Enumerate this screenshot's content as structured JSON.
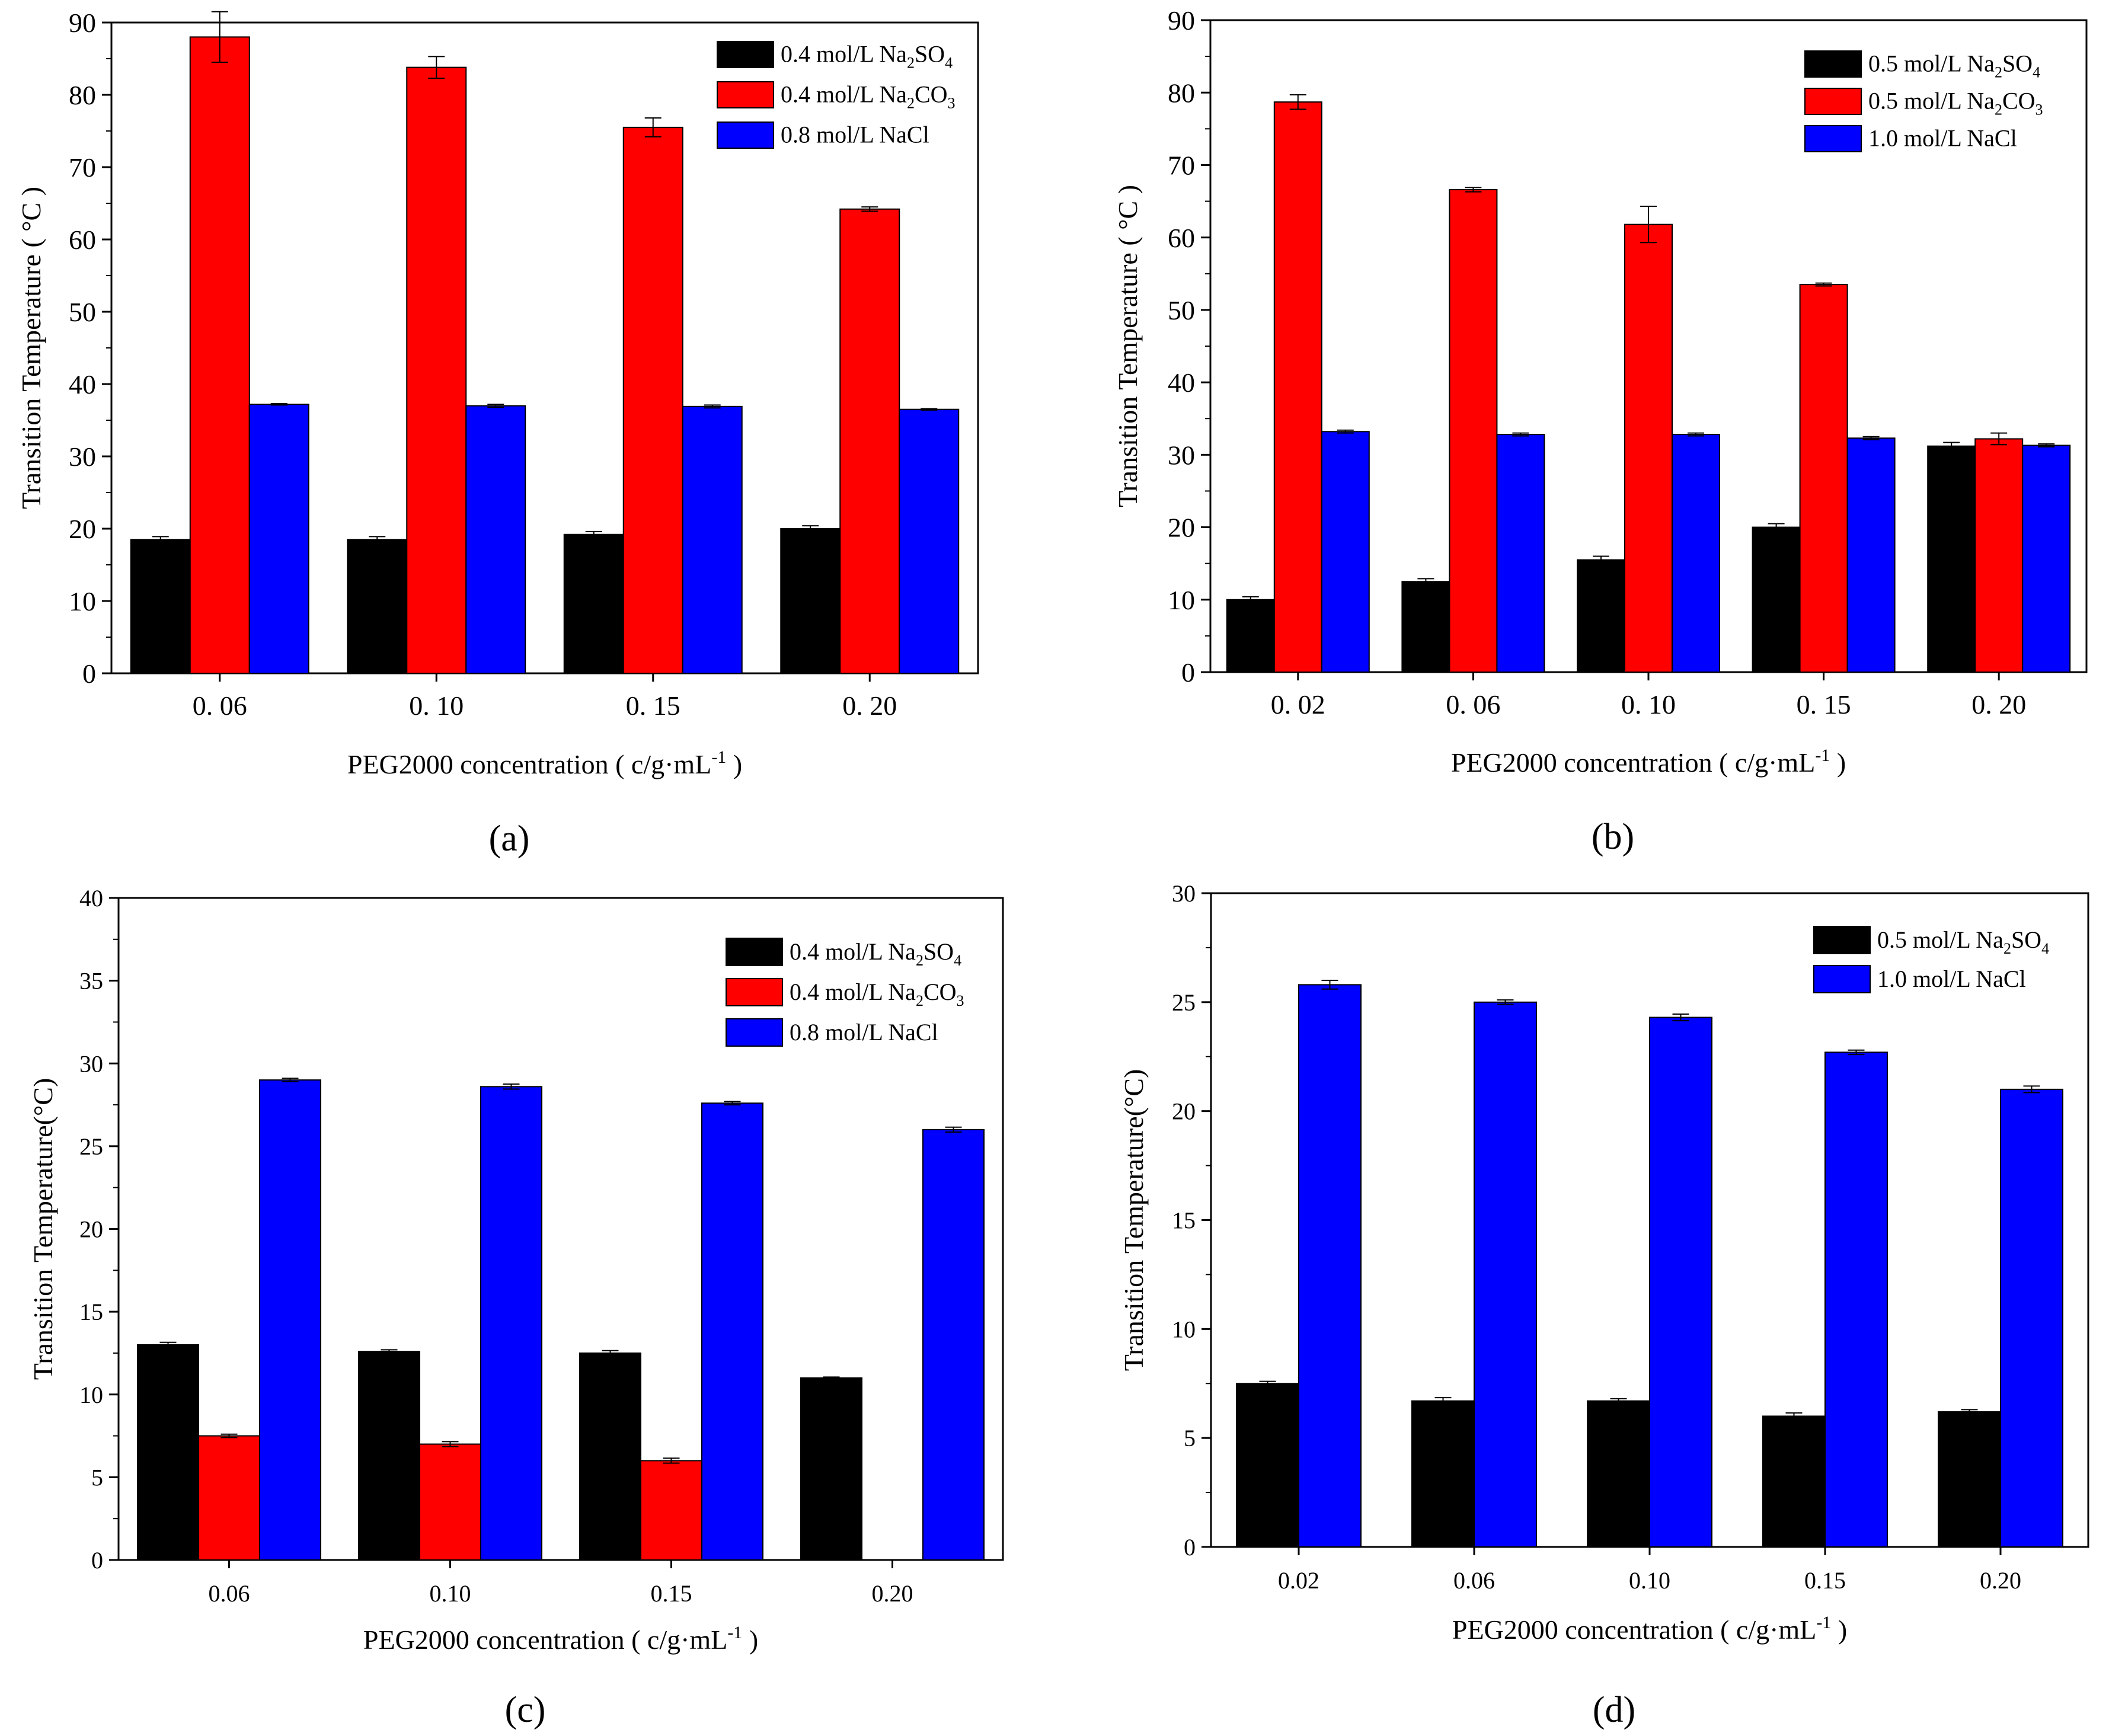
{
  "colors": {
    "na2so4": "#000000",
    "na2co3": "#ff0000",
    "nacl": "#0000ff",
    "axis": "#000000",
    "background": "#ffffff"
  },
  "chart_data": [
    {
      "type": "bar",
      "panel_label": "(a)",
      "ylabel": "Transition Temperature ( °C )",
      "xlabel": "PEG2000 concentration ( c/g·mL-1 )",
      "xlabel_parts": [
        "PEG2000 concentration ( c/g·mL",
        "-1",
        " )"
      ],
      "categories": [
        "0. 06",
        "0. 10",
        "0. 15",
        "0. 20"
      ],
      "ylim": [
        0,
        90
      ],
      "yticks": [
        0,
        10,
        20,
        30,
        40,
        50,
        60,
        70,
        80,
        90
      ],
      "series": [
        {
          "name": "0.4 mol/L Na2SO4",
          "legend_parts": [
            "0.4 mol/L Na",
            "2",
            "SO",
            "4"
          ],
          "color_key": "na2so4",
          "values": [
            18.5,
            18.5,
            19.2,
            20.0
          ],
          "errors": [
            0.4,
            0.4,
            0.4,
            0.4
          ]
        },
        {
          "name": "0.4 mol/L Na2CO3",
          "legend_parts": [
            "0.4 mol/L Na",
            "2",
            "CO",
            "3"
          ],
          "color_key": "na2co3",
          "values": [
            88.0,
            83.8,
            75.5,
            64.2
          ],
          "errors": [
            3.5,
            1.5,
            1.3,
            0.3
          ]
        },
        {
          "name": "0.8 mol/L NaCl",
          "legend_parts": [
            "0.8 mol/L NaCl"
          ],
          "color_key": "nacl",
          "values": [
            37.2,
            37.0,
            36.9,
            36.5
          ],
          "errors": [
            0.1,
            0.2,
            0.2,
            0.1
          ]
        }
      ]
    },
    {
      "type": "bar",
      "panel_label": "(b)",
      "ylabel": "Transition Temperature ( °C )",
      "xlabel": "PEG2000 concentration ( c/g·mL-1 )",
      "xlabel_parts": [
        "PEG2000 concentration ( c/g·mL",
        "-1",
        " )"
      ],
      "categories": [
        "0. 02",
        "0. 06",
        "0. 10",
        "0. 15",
        "0. 20"
      ],
      "ylim": [
        0,
        90
      ],
      "yticks": [
        0,
        10,
        20,
        30,
        40,
        50,
        60,
        70,
        80,
        90
      ],
      "series": [
        {
          "name": "0.5 mol/L Na2SO4",
          "legend_parts": [
            "0.5 mol/L Na",
            "2",
            "SO",
            "4"
          ],
          "color_key": "na2so4",
          "values": [
            10.0,
            12.5,
            15.5,
            20.0,
            31.2
          ],
          "errors": [
            0.4,
            0.4,
            0.5,
            0.5,
            0.5
          ]
        },
        {
          "name": "0.5 mol/L Na2CO3",
          "legend_parts": [
            "0.5 mol/L Na",
            "2",
            "CO",
            "3"
          ],
          "color_key": "na2co3",
          "values": [
            78.7,
            66.6,
            61.8,
            53.5,
            32.2
          ],
          "errors": [
            1.0,
            0.3,
            2.5,
            0.2,
            0.8
          ]
        },
        {
          "name": "1.0 mol/L NaCl",
          "legend_parts": [
            "1.0 mol/L NaCl"
          ],
          "color_key": "nacl",
          "values": [
            33.2,
            32.8,
            32.8,
            32.3,
            31.3
          ],
          "errors": [
            0.2,
            0.2,
            0.2,
            0.2,
            0.2
          ]
        }
      ]
    },
    {
      "type": "bar",
      "panel_label": "(c)",
      "ylabel": "Transition Temperature(°C)",
      "xlabel": "PEG2000 concentration ( c/g·mL-1 )",
      "xlabel_parts": [
        "PEG2000 concentration ( c/g·mL",
        "-1",
        " )"
      ],
      "categories": [
        "0.06",
        "0.10",
        "0.15",
        "0.20"
      ],
      "ylim": [
        0,
        40
      ],
      "yticks": [
        0,
        5,
        10,
        15,
        20,
        25,
        30,
        35,
        40
      ],
      "series": [
        {
          "name": "0.4 mol/L Na2SO4",
          "legend_parts": [
            "0.4 mol/L Na",
            "2",
            "SO",
            "4"
          ],
          "color_key": "na2so4",
          "values": [
            13.0,
            12.6,
            12.5,
            11.0
          ],
          "errors": [
            0.15,
            0.1,
            0.15,
            0.05
          ]
        },
        {
          "name": "0.4 mol/L Na2CO3",
          "legend_parts": [
            "0.4 mol/L Na",
            "2",
            "CO",
            "3"
          ],
          "color_key": "na2co3",
          "values": [
            7.5,
            7.0,
            6.0,
            null
          ],
          "errors": [
            0.1,
            0.15,
            0.15,
            null
          ]
        },
        {
          "name": "0.8 mol/L NaCl",
          "legend_parts": [
            "0.8 mol/L NaCl"
          ],
          "color_key": "nacl",
          "values": [
            29.0,
            28.6,
            27.6,
            26.0
          ],
          "errors": [
            0.1,
            0.15,
            0.1,
            0.15
          ]
        }
      ]
    },
    {
      "type": "bar",
      "panel_label": "(d)",
      "ylabel": "Transition Temperature(°C)",
      "xlabel": "PEG2000 concentration ( c/g·mL-1 )",
      "xlabel_parts": [
        "PEG2000 concentration ( c/g·mL",
        "-1",
        " )"
      ],
      "categories": [
        "0.02",
        "0.06",
        "0.10",
        "0.15",
        "0.20"
      ],
      "ylim": [
        0,
        30
      ],
      "yticks": [
        0,
        5,
        10,
        15,
        20,
        25,
        30
      ],
      "series": [
        {
          "name": "0.5 mol/L Na2SO4",
          "legend_parts": [
            "0.5 mol/L Na",
            "2",
            "SO",
            "4"
          ],
          "color_key": "na2so4",
          "values": [
            7.5,
            6.7,
            6.7,
            6.0,
            6.2
          ],
          "errors": [
            0.1,
            0.15,
            0.1,
            0.15,
            0.1
          ]
        },
        {
          "name": "1.0 mol/L NaCl",
          "legend_parts": [
            "1.0 mol/L NaCl"
          ],
          "color_key": "nacl",
          "values": [
            25.8,
            25.0,
            24.3,
            22.7,
            21.0
          ],
          "errors": [
            0.2,
            0.1,
            0.15,
            0.1,
            0.15
          ]
        }
      ]
    }
  ]
}
